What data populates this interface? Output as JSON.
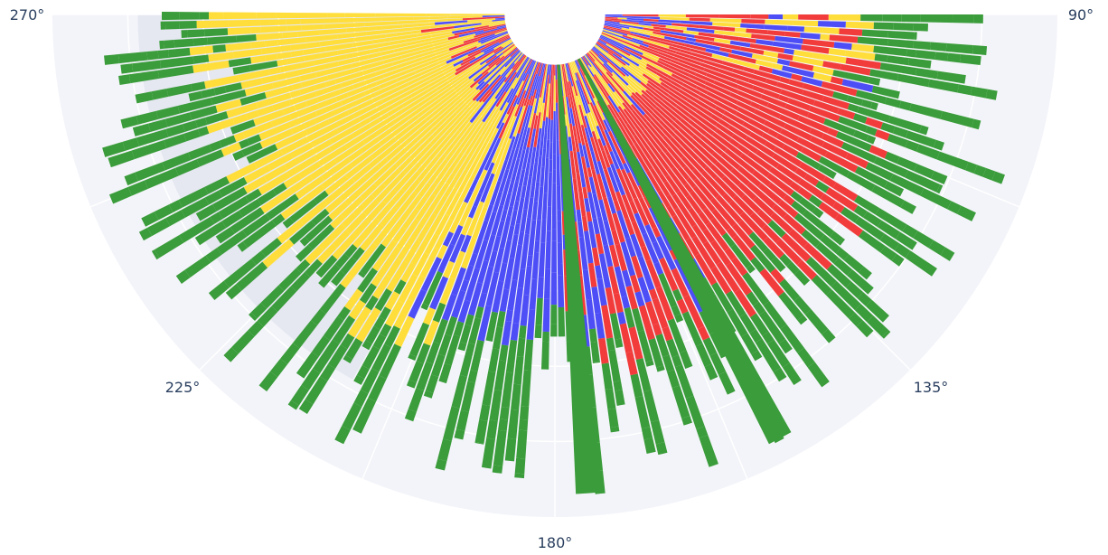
{
  "chart_data": {
    "type": "barpolar",
    "title": "",
    "angular_axis": {
      "direction": "clockwise",
      "rotation": 90,
      "sector": [
        90,
        270
      ],
      "tick_labels": [
        "90°",
        "135°",
        "180°",
        "225°",
        "270°"
      ],
      "tick_values": [
        90,
        135,
        180,
        225,
        270
      ]
    },
    "radial_axis": {
      "hole": 0.1,
      "range": [
        0,
        100
      ],
      "grid": true
    },
    "series_colors": [
      "#ffde3b",
      "#4e4ef7",
      "#f23c3c",
      "#3a9c3a"
    ],
    "sectors": [
      {
        "name": "yellow",
        "color": "#ffde3b",
        "theta_range": [
          198,
          270
        ],
        "r_range": [
          12,
          66
        ]
      },
      {
        "name": "blue",
        "color": "#4e4ef7",
        "theta_range": [
          150,
          205
        ],
        "r_range": [
          12,
          58
        ]
      },
      {
        "name": "red",
        "color": "#f23c3c",
        "theta_range": [
          105,
          178
        ],
        "r_range": [
          12,
          66
        ]
      },
      {
        "name": "green",
        "color": "#3a9c3a",
        "theta_range": [
          90,
          270
        ],
        "r_range": [
          55,
          95
        ]
      }
    ],
    "green_spokes": [
      {
        "theta": 176,
        "r": 95
      },
      {
        "theta": 152,
        "r": 95
      }
    ]
  }
}
